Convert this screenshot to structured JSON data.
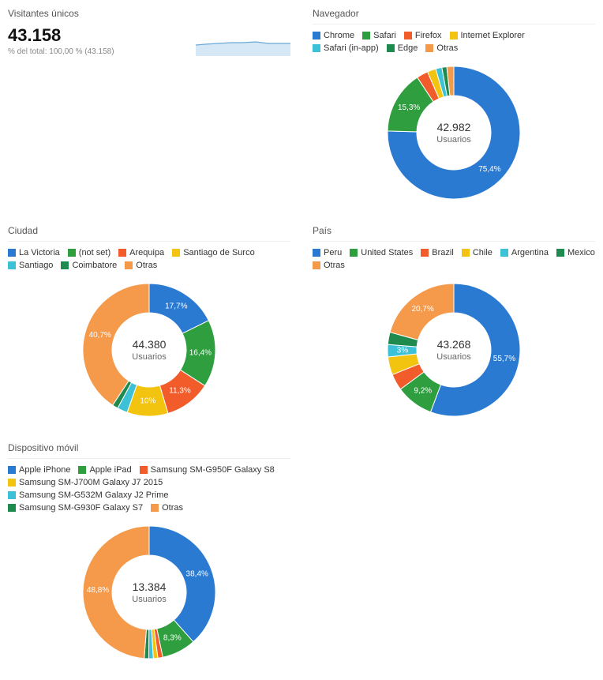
{
  "palette": [
    "#2a7ad2",
    "#2e9e3f",
    "#f25b2a",
    "#f2c30f",
    "#3cc1d6",
    "#1f8a4d",
    "#f59a4a"
  ],
  "visitors": {
    "title": "Visitantes únicos",
    "value": "43.158",
    "subtext": "% del total: 100,00 % (43.158)",
    "sparkline": {
      "points": [
        0,
        18,
        12,
        17,
        28,
        16,
        44,
        15,
        60,
        15,
        76,
        14,
        92,
        16,
        108,
        16,
        120,
        16
      ],
      "fill": "#d6e8f5",
      "stroke": "#6aa9d8",
      "height": 32,
      "width": 120
    }
  },
  "charts": {
    "ciudad": {
      "title": "Ciudad",
      "center_value": "44.380",
      "center_label": "Usuarios",
      "legend": [
        "La Victoria",
        "(not set)",
        "Arequipa",
        "Santiago de Surco",
        "Santiago",
        "Coimbatore",
        "Otras"
      ],
      "values": [
        17.7,
        16.4,
        11.3,
        10.0,
        2.5,
        1.4,
        40.7
      ],
      "show_labels": [
        true,
        true,
        true,
        true,
        false,
        false,
        true
      ],
      "label_texts": [
        "17,7%",
        "16,4%",
        "11,3%",
        "10%",
        "",
        "",
        "40,7%"
      ]
    },
    "navegador": {
      "title": "Navegador",
      "center_value": "42.982",
      "center_label": "Usuarios",
      "legend": [
        "Chrome",
        "Safari",
        "Firefox",
        "Internet Explorer",
        "Safari (in-app)",
        "Edge",
        "Otras"
      ],
      "values": [
        75.4,
        15.3,
        2.8,
        2.1,
        1.5,
        1.2,
        1.7
      ],
      "show_labels": [
        true,
        true,
        false,
        false,
        false,
        false,
        false
      ],
      "label_texts": [
        "75,4%",
        "15,3%",
        "",
        "",
        "",
        "",
        ""
      ]
    },
    "dispositivo": {
      "title": "Dispositivo móvil",
      "center_value": "13.384",
      "center_label": "Usuarios",
      "legend": [
        "Apple iPhone",
        "Apple iPad",
        "Samsung SM-G950F Galaxy S8",
        "Samsung SM-J700M Galaxy J7 2015",
        "Samsung SM-G532M Galaxy J2 Prime",
        "Samsung SM-G930F Galaxy S7",
        "Otras"
      ],
      "values": [
        38.4,
        8.3,
        1.2,
        1.1,
        1.1,
        1.1,
        48.8
      ],
      "show_labels": [
        true,
        true,
        false,
        false,
        false,
        false,
        true
      ],
      "label_texts": [
        "38,4%",
        "8,3%",
        "",
        "",
        "",
        "",
        "48,8%"
      ]
    },
    "pais": {
      "title": "País",
      "center_value": "43.268",
      "center_label": "Usuarios",
      "legend": [
        "Peru",
        "United States",
        "Brazil",
        "Chile",
        "Argentina",
        "Mexico",
        "Otras"
      ],
      "values": [
        55.7,
        9.2,
        4.0,
        4.4,
        3.0,
        3.0,
        20.7
      ],
      "show_labels": [
        true,
        true,
        false,
        false,
        true,
        false,
        true
      ],
      "label_texts": [
        "55,7%",
        "9,2%",
        "",
        "",
        "3%",
        "",
        "20,7%"
      ]
    }
  },
  "donut_style": {
    "outer_r": 84,
    "inner_r": 47,
    "label_r": 65,
    "svg_size": 190
  }
}
